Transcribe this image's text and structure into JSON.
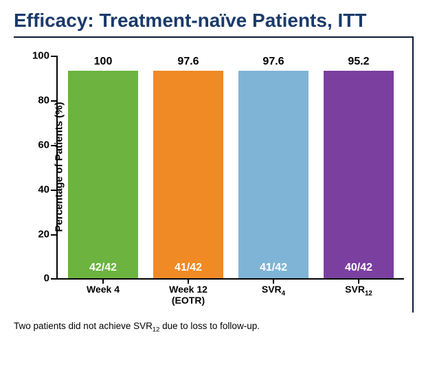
{
  "title": "Efficacy: Treatment-naïve Patients, ITT",
  "chart": {
    "type": "bar",
    "ylabel": "Percentage of Patients (%)",
    "ylim": [
      0,
      100
    ],
    "ytick_step": 20,
    "yticks": [
      0,
      20,
      40,
      60,
      80,
      100
    ],
    "background_color": "#ffffff",
    "border_color": "#0a1a3a",
    "axis_color": "#000000",
    "label_fontsize": 15,
    "title_fontsize": 28,
    "title_color": "#1a3a6a",
    "value_fontsize": 16,
    "fraction_color": "#ffffff",
    "bar_width": 0.82,
    "bars": [
      {
        "category": "Week 4",
        "category_line2": "",
        "value": 100,
        "fraction": "42/42",
        "color": "#6cb33f"
      },
      {
        "category": "Week 12",
        "category_line2": "(EOTR)",
        "value": 97.6,
        "fraction": "41/42",
        "color": "#f08a24"
      },
      {
        "category": "SVR<sub>4</sub>",
        "category_line2": "",
        "value": 97.6,
        "fraction": "41/42",
        "color": "#7fb4d6"
      },
      {
        "category": "SVR<sub>12</sub>",
        "category_line2": "",
        "value": 95.2,
        "fraction": "40/42",
        "color": "#7b3fa0"
      }
    ]
  },
  "footnote": "Two patients did not achieve SVR<sub>12</sub> due to loss to follow-up."
}
